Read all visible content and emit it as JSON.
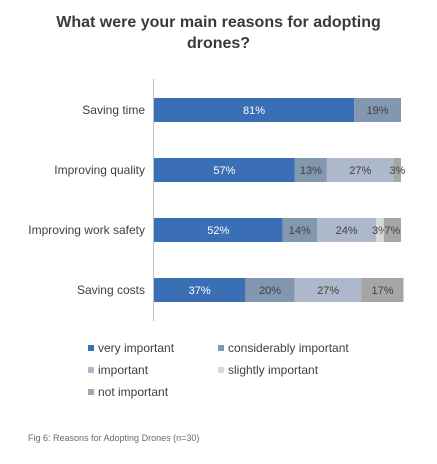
{
  "chart_data": {
    "type": "bar",
    "orientation": "horizontal",
    "stacked": true,
    "title": "What were your main reasons for adopting\ndrones?",
    "categories": [
      "Saving time",
      "Improving quality",
      "Improving work safety",
      "Saving costs"
    ],
    "series": [
      {
        "name": "very important",
        "color": "#3a6fb5",
        "values": [
          81,
          57,
          52,
          37
        ],
        "labels": [
          "81%",
          "57%",
          "52%",
          "37%"
        ]
      },
      {
        "name": "considerably important",
        "color": "#8497b0",
        "values": [
          19,
          13,
          14,
          20
        ],
        "labels": [
          "19%",
          "13%",
          "14%",
          "20%"
        ]
      },
      {
        "name": "important",
        "color": "#adb9ca",
        "values": [
          0,
          27,
          24,
          27
        ],
        "labels": [
          "",
          "27%",
          "24%",
          "27%"
        ]
      },
      {
        "name": "slightly important",
        "color": "#d9d9d9",
        "values": [
          0,
          0,
          3,
          0
        ],
        "labels": [
          "",
          "",
          "3%",
          ""
        ]
      },
      {
        "name": "not important",
        "color": "#a6a6a6",
        "values": [
          0,
          3,
          7,
          17
        ],
        "labels": [
          "",
          "3%",
          "7%",
          "17%"
        ]
      }
    ],
    "xlim": [
      0,
      100
    ],
    "grid": false,
    "legend_position": "bottom"
  },
  "caption": "Fig 6: Reasons for Adopting Drones (n=30)"
}
